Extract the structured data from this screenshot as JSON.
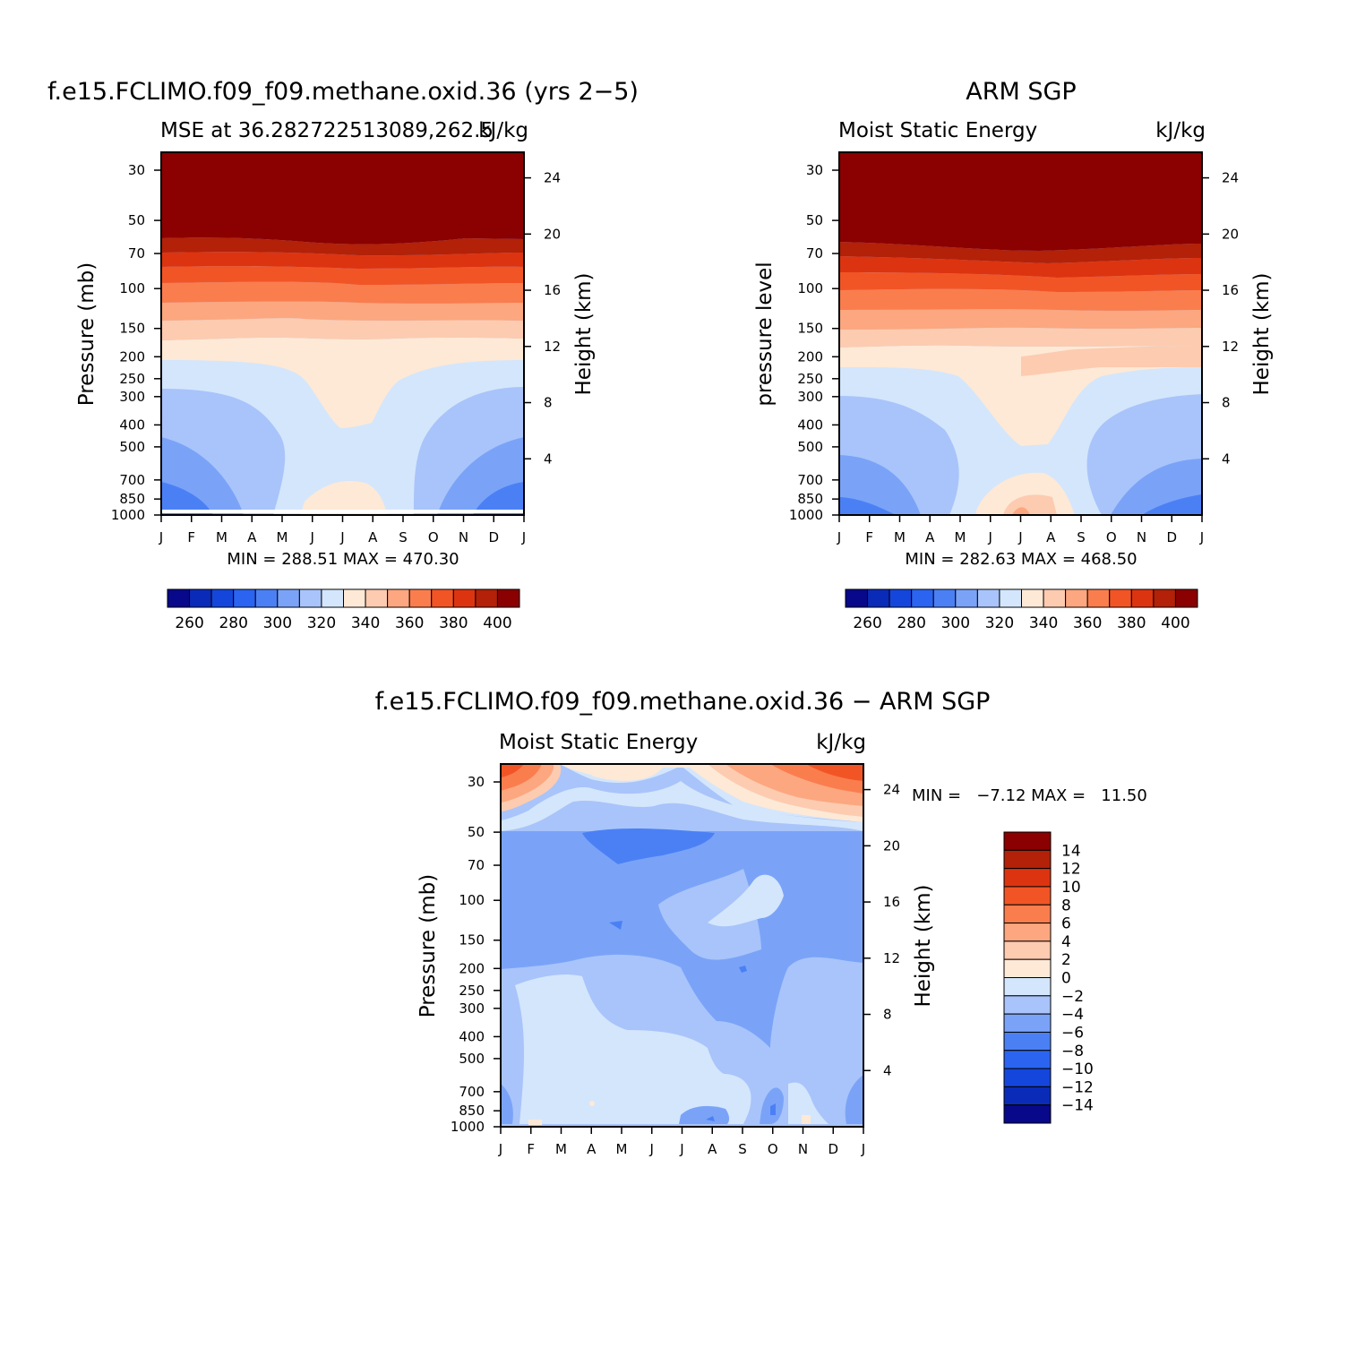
{
  "months": [
    "J",
    "F",
    "M",
    "A",
    "M",
    "J",
    "J",
    "A",
    "S",
    "O",
    "N",
    "D",
    "J"
  ],
  "pressure_ticks": [
    30,
    50,
    70,
    100,
    150,
    200,
    250,
    300,
    400,
    500,
    700,
    850,
    1000
  ],
  "height_ticks": [
    4,
    8,
    12,
    16,
    20,
    24
  ],
  "panels": [
    {
      "id": "model",
      "title": "f.e15.FCLIMO.f09_f09.methane.oxid.36 (yrs 2−5)",
      "left_label": "MSE at 36.282722513089,262.5",
      "right_label": "kJ/kg",
      "y_axis_label": "Pressure (mb)",
      "y2_axis_label": "Height (km)",
      "minmax": "MIN = 288.51 MAX = 470.30"
    },
    {
      "id": "obs",
      "title": "ARM SGP",
      "left_label": "Moist Static Energy",
      "right_label": "kJ/kg",
      "y_axis_label": "pressure level",
      "y2_axis_label": "Height (km)",
      "minmax": "MIN = 282.63 MAX = 468.50"
    },
    {
      "id": "diff",
      "title": "f.e15.FCLIMO.f09_f09.methane.oxid.36 − ARM SGP",
      "left_label": "Moist Static Energy",
      "right_label": "kJ/kg",
      "y_axis_label": "Pressure (mb)",
      "y2_axis_label": "Height (km)",
      "minmax": "MIN =   −7.12 MAX =   11.50"
    }
  ],
  "colorbar_abs": {
    "labels": [
      "260",
      "280",
      "300",
      "320",
      "340",
      "360",
      "380",
      "400"
    ],
    "colors": [
      "#08088a",
      "#0a2bb8",
      "#1546dc",
      "#2a64f0",
      "#4b80f5",
      "#7aa3f8",
      "#a8c4fa",
      "#d4e6fc",
      "#fde9d6",
      "#fdcbb0",
      "#fca77f",
      "#fa7d4e",
      "#f25525",
      "#dc3410",
      "#b22108",
      "#8b0000"
    ]
  },
  "colorbar_diff": {
    "labels": [
      "14",
      "12",
      "10",
      "8",
      "6",
      "4",
      "2",
      "0",
      "−2",
      "−4",
      "−6",
      "−8",
      "−10",
      "−12",
      "−14"
    ],
    "colors": [
      "#8b0000",
      "#b22108",
      "#dc3410",
      "#f25525",
      "#fa7d4e",
      "#fca77f",
      "#fdcbb0",
      "#fde9d6",
      "#d4e6fc",
      "#a8c4fa",
      "#7aa3f8",
      "#4b80f5",
      "#2a64f0",
      "#1546dc",
      "#0a2bb8",
      "#08088a"
    ]
  },
  "chart_data": [
    {
      "type": "heatmap",
      "title": "f.e15.FCLIMO.f09_f09.methane.oxid.36 (yrs 2−5)",
      "subtitle": "MSE at 36.282722513089,262.5",
      "units": "kJ/kg",
      "xlabel": "",
      "ylabel": "Pressure (mb)",
      "y2label": "Height (km)",
      "x": [
        "J",
        "F",
        "M",
        "A",
        "M",
        "J",
        "J",
        "A",
        "S",
        "O",
        "N",
        "D",
        "J"
      ],
      "y_levels_mb": [
        30,
        50,
        70,
        100,
        150,
        200,
        250,
        300,
        400,
        500,
        700,
        850,
        1000
      ],
      "y_scale": "log",
      "contour_levels": [
        260,
        270,
        280,
        290,
        300,
        310,
        320,
        330,
        340,
        350,
        360,
        370,
        380,
        390,
        400
      ],
      "approx_level_heights_mb": {
        "400": 66,
        "390": 73,
        "380": 86,
        "370": 100,
        "360": 118,
        "350": 140,
        "340": 170,
        "330": 205,
        "320": 270,
        "310": 440
      },
      "min": 288.51,
      "max": 470.3
    },
    {
      "type": "heatmap",
      "title": "ARM SGP",
      "subtitle": "Moist Static Energy",
      "units": "kJ/kg",
      "xlabel": "",
      "ylabel": "pressure level",
      "y2label": "Height (km)",
      "x": [
        "J",
        "F",
        "M",
        "A",
        "M",
        "J",
        "J",
        "A",
        "S",
        "O",
        "N",
        "D",
        "J"
      ],
      "y_levels_mb": [
        30,
        50,
        70,
        100,
        150,
        200,
        250,
        300,
        400,
        500,
        700,
        850,
        1000
      ],
      "y_scale": "log",
      "contour_levels": [
        260,
        270,
        280,
        290,
        300,
        310,
        320,
        330,
        340,
        350,
        360,
        370,
        380,
        390,
        400
      ],
      "min": 282.63,
      "max": 468.5
    },
    {
      "type": "heatmap",
      "title": "f.e15.FCLIMO.f09_f09.methane.oxid.36 − ARM SGP",
      "subtitle": "Moist Static Energy",
      "units": "kJ/kg",
      "xlabel": "",
      "ylabel": "Pressure (mb)",
      "y2label": "Height (km)",
      "x": [
        "J",
        "F",
        "M",
        "A",
        "M",
        "J",
        "J",
        "A",
        "S",
        "O",
        "N",
        "D",
        "J"
      ],
      "y_levels_mb": [
        30,
        50,
        70,
        100,
        150,
        200,
        250,
        300,
        400,
        500,
        700,
        850,
        1000
      ],
      "y_scale": "log",
      "contour_levels": [
        -14,
        -12,
        -10,
        -8,
        -6,
        -4,
        -2,
        0,
        2,
        4,
        6,
        8,
        10,
        12,
        14
      ],
      "min": -7.12,
      "max": 11.5
    }
  ]
}
